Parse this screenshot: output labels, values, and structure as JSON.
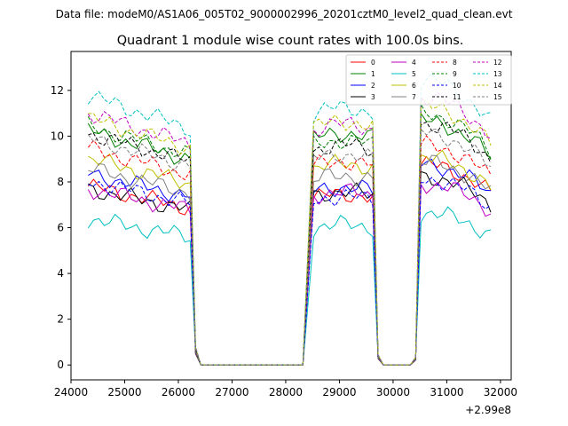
{
  "chart_data": {
    "type": "line",
    "suptitle": "Data file: modeM0/AS1A06_005T02_9000002996_20201cztM0_level2_quad_clean.evt",
    "title": "Quadrant 1 module wise count rates with 100.0s bins.",
    "xlabel": "",
    "ylabel": "",
    "x_offset_label": "+2.99e8",
    "xlim": [
      24000,
      32200
    ],
    "ylim": [
      -0.65,
      13.7
    ],
    "xticks": [
      24000,
      25000,
      26000,
      27000,
      28000,
      29000,
      30000,
      31000,
      32000
    ],
    "xtick_labels": [
      "24000",
      "25000",
      "26000",
      "27000",
      "28000",
      "29000",
      "30000",
      "31000",
      "32000"
    ],
    "yticks": [
      0,
      2,
      4,
      6,
      8,
      10,
      12
    ],
    "ytick_labels": [
      "0",
      "2",
      "4",
      "6",
      "8",
      "10",
      "12"
    ],
    "legend_position": "top-right",
    "legend_columns": 4,
    "segments": [
      {
        "start": 24320,
        "end": 26220,
        "step": 100
      },
      {
        "start": 28520,
        "end": 29620,
        "step": 100
      },
      {
        "start": 30520,
        "end": 31820,
        "step": 100
      }
    ],
    "gap_points": [
      {
        "x": 26320,
        "y": 0.7
      },
      {
        "x": 26420,
        "y": 0
      },
      {
        "x": 28320,
        "y": 0
      },
      {
        "x": 29720,
        "y": 0.4
      },
      {
        "x": 29820,
        "y": 0
      },
      {
        "x": 30320,
        "y": 0
      },
      {
        "x": 30420,
        "y": 0.3
      }
    ],
    "series": [
      {
        "name": "0",
        "color": "#ff0000",
        "dash": "solid",
        "levels": [
          7.1,
          7.3,
          8.3
        ]
      },
      {
        "name": "1",
        "color": "#008000",
        "dash": "solid",
        "levels": [
          9.3,
          9.9,
          10.1
        ]
      },
      {
        "name": "2",
        "color": "#0000ff",
        "dash": "solid",
        "levels": [
          7.6,
          7.6,
          8.3
        ]
      },
      {
        "name": "3",
        "color": "#000000",
        "dash": "solid",
        "levels": [
          7.0,
          7.4,
          7.8
        ]
      },
      {
        "name": "4",
        "color": "#bf00bf",
        "dash": "solid",
        "levels": [
          7.0,
          7.4,
          7.5
        ]
      },
      {
        "name": "5",
        "color": "#00bfbf",
        "dash": "solid",
        "levels": [
          5.8,
          6.0,
          6.3
        ]
      },
      {
        "name": "6",
        "color": "#bfbf00",
        "dash": "solid",
        "levels": [
          8.2,
          8.6,
          8.6
        ]
      },
      {
        "name": "7",
        "color": "#808080",
        "dash": "solid",
        "levels": [
          7.8,
          8.1,
          8.4
        ]
      },
      {
        "name": "8",
        "color": "#ff0000",
        "dash": "dashed",
        "levels": [
          8.6,
          8.7,
          9.1
        ]
      },
      {
        "name": "9",
        "color": "#008000",
        "dash": "dashed",
        "levels": [
          9.5,
          9.6,
          10.4
        ]
      },
      {
        "name": "10",
        "color": "#0000ff",
        "dash": "dashed",
        "levels": [
          7.3,
          7.2,
          7.7
        ]
      },
      {
        "name": "11",
        "color": "#000000",
        "dash": "dashed",
        "levels": [
          9.2,
          9.4,
          10.0
        ]
      },
      {
        "name": "12",
        "color": "#bf00bf",
        "dash": "dashed",
        "levels": [
          10.0,
          10.3,
          11.1
        ]
      },
      {
        "name": "13",
        "color": "#00bfbf",
        "dash": "dashed",
        "levels": [
          10.7,
          11.0,
          11.8
        ]
      },
      {
        "name": "14",
        "color": "#bfbf00",
        "dash": "dashed",
        "levels": [
          9.8,
          10.4,
          10.7
        ]
      },
      {
        "name": "15",
        "color": "#808080",
        "dash": "dashed",
        "levels": [
          9.0,
          9.0,
          9.6
        ]
      }
    ]
  }
}
